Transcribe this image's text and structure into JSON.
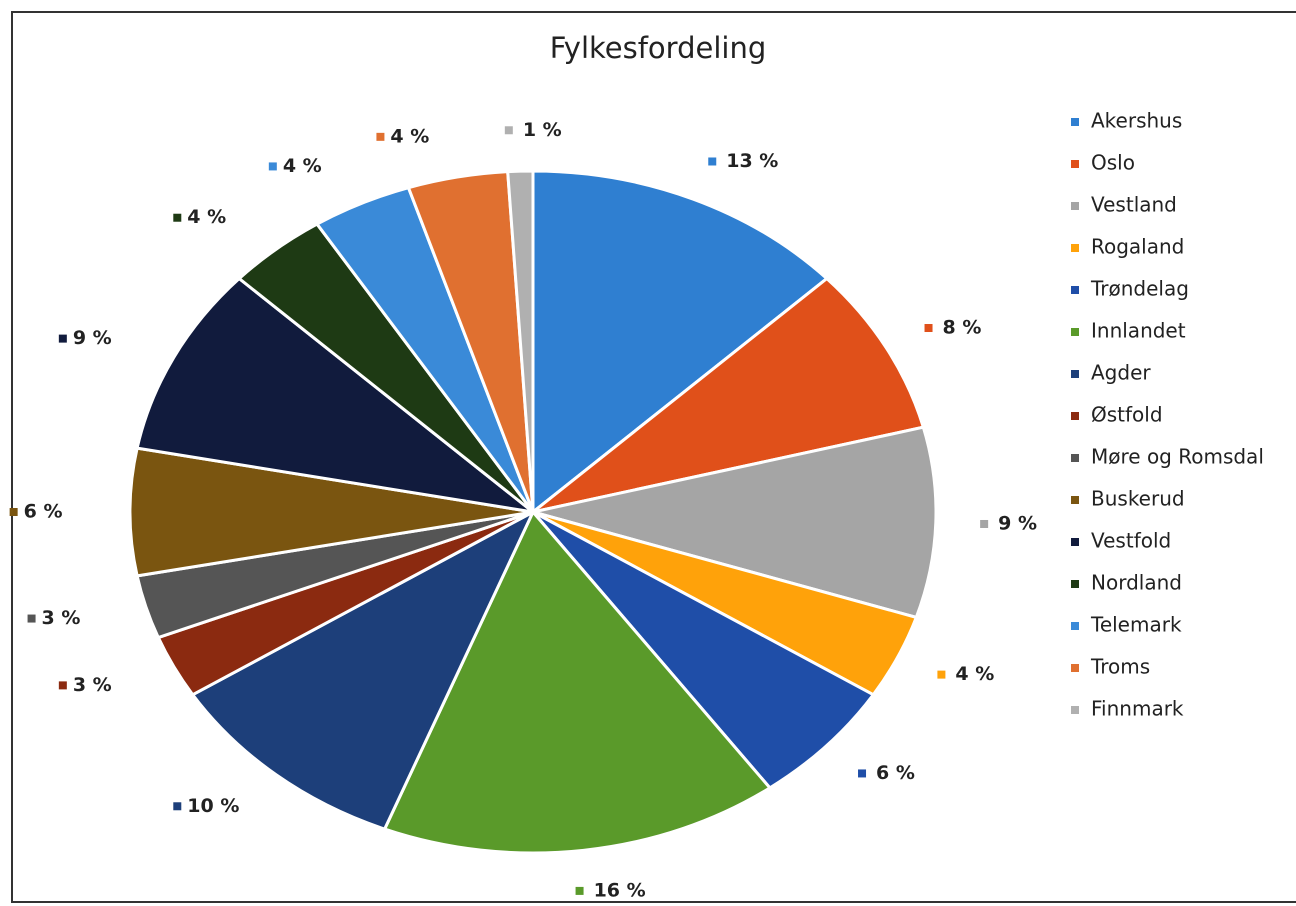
{
  "chart_data": {
    "type": "pie",
    "title": "Fylkesfordeling",
    "categories": [
      "Akershus",
      "Oslo",
      "Vestland",
      "Rogaland",
      "Trøndelag",
      "Innlandet",
      "Agder",
      "Østfold",
      "Møre og Romsdal",
      "Buskerud",
      "Vestfold",
      "Nordland",
      "Telemark",
      "Troms",
      "Finnmark"
    ],
    "values": [
      13,
      8,
      9,
      4,
      6,
      16,
      10,
      3,
      3,
      6,
      9,
      4,
      4,
      4,
      1
    ],
    "value_labels": [
      "13 %",
      "8 %",
      "9 %",
      "4 %",
      "6 %",
      "16 %",
      "10 %",
      "3 %",
      "3 %",
      "6 %",
      "9 %",
      "4 %",
      "4 %",
      "4 %",
      "1 %"
    ],
    "colors": [
      "#2f7fd1",
      "#e0501a",
      "#a5a5a5",
      "#ffa20a",
      "#1f4ea8",
      "#5a9a2a",
      "#1d3f7a",
      "#8b2a10",
      "#555555",
      "#7a5510",
      "#111b3d",
      "#1e3a14",
      "#3a8ad8",
      "#e07030",
      "#b0b0b0"
    ],
    "legend": "right"
  }
}
